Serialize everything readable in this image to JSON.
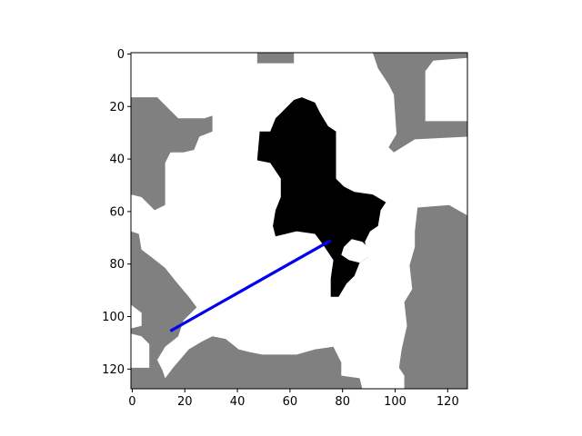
{
  "chart_data": {
    "type": "heatmap",
    "title": "",
    "xlabel": "",
    "ylabel": "",
    "xlim": [
      -0.5,
      127.5
    ],
    "ylim": [
      127.5,
      -0.5
    ],
    "y_axis_inverted": true,
    "grid": false,
    "legend": "none",
    "x_ticks": [
      0,
      20,
      40,
      60,
      80,
      100,
      120
    ],
    "y_ticks": [
      0,
      20,
      40,
      60,
      80,
      100,
      120
    ],
    "x_tick_labels": [
      "0",
      "20",
      "40",
      "60",
      "80",
      "100",
      "120"
    ],
    "y_tick_labels": [
      "0",
      "20",
      "40",
      "60",
      "80",
      "100",
      "120"
    ],
    "colors": {
      "free": "#ffffff",
      "occupied": "#808080",
      "target": "#000000",
      "path": "#0000ee"
    },
    "map_regions": [
      {
        "class": "occupied",
        "name": "top-small-block",
        "polygon": [
          [
            48,
            0
          ],
          [
            62,
            0
          ],
          [
            62,
            4
          ],
          [
            48,
            4
          ]
        ]
      },
      {
        "class": "occupied",
        "name": "top-right-block",
        "polygon": [
          [
            92,
            0
          ],
          [
            128,
            0
          ],
          [
            128,
            2
          ],
          [
            115,
            3
          ],
          [
            112,
            7
          ],
          [
            112,
            26
          ],
          [
            128,
            26
          ],
          [
            128,
            32
          ],
          [
            108,
            33
          ],
          [
            100,
            38
          ],
          [
            98,
            36
          ],
          [
            101,
            31
          ],
          [
            100,
            16
          ],
          [
            98,
            12
          ],
          [
            94,
            6
          ]
        ]
      },
      {
        "class": "occupied",
        "name": "left-upper-block",
        "polygon": [
          [
            0,
            17
          ],
          [
            10,
            17
          ],
          [
            14,
            21
          ],
          [
            18,
            25
          ],
          [
            28,
            25
          ],
          [
            31,
            24
          ],
          [
            31,
            30
          ],
          [
            26,
            32
          ],
          [
            24,
            37
          ],
          [
            20,
            38
          ],
          [
            15,
            38
          ],
          [
            13,
            42
          ],
          [
            13,
            58
          ],
          [
            9,
            60
          ],
          [
            4,
            55
          ],
          [
            0,
            54
          ]
        ]
      },
      {
        "class": "occupied",
        "name": "left-lower-block",
        "polygon": [
          [
            0,
            68
          ],
          [
            3,
            69
          ],
          [
            4,
            75
          ],
          [
            8,
            78
          ],
          [
            13,
            82
          ],
          [
            17,
            87
          ],
          [
            22,
            93
          ],
          [
            25,
            97
          ],
          [
            20,
            102
          ],
          [
            18,
            108
          ],
          [
            13,
            112
          ],
          [
            10,
            117
          ],
          [
            12,
            121
          ],
          [
            13,
            124
          ],
          [
            16,
            120
          ],
          [
            22,
            113
          ],
          [
            27,
            110
          ],
          [
            31,
            108
          ],
          [
            36,
            109
          ],
          [
            41,
            113
          ],
          [
            45,
            114
          ],
          [
            50,
            115
          ],
          [
            63,
            115
          ],
          [
            70,
            113
          ],
          [
            77,
            112
          ],
          [
            80,
            118
          ],
          [
            80,
            123
          ],
          [
            87,
            124
          ],
          [
            88,
            128
          ],
          [
            0,
            128
          ],
          [
            0,
            120
          ],
          [
            7,
            120
          ],
          [
            7,
            111
          ],
          [
            4,
            108
          ],
          [
            0,
            107
          ],
          [
            0,
            105
          ],
          [
            4,
            104
          ],
          [
            4,
            99
          ],
          [
            0,
            96
          ]
        ]
      },
      {
        "class": "occupied",
        "name": "right-block",
        "polygon": [
          [
            109,
            59
          ],
          [
            121,
            58
          ],
          [
            128,
            62
          ],
          [
            128,
            128
          ],
          [
            104,
            128
          ],
          [
            104,
            123
          ],
          [
            102,
            120
          ],
          [
            103,
            113
          ],
          [
            105,
            104
          ],
          [
            104,
            95
          ],
          [
            107,
            90
          ],
          [
            106,
            81
          ],
          [
            108,
            74
          ],
          [
            108,
            68
          ]
        ]
      },
      {
        "class": "free",
        "name": "free-pocket-upper-right",
        "polygon": [
          [
            112,
            7
          ],
          [
            128,
            2
          ],
          [
            128,
            26
          ],
          [
            112,
            26
          ]
        ]
      },
      {
        "class": "free",
        "name": "free-pocket-left",
        "polygon": [
          [
            0,
            99
          ],
          [
            4,
            99
          ],
          [
            4,
            104
          ],
          [
            0,
            105
          ]
        ]
      },
      {
        "class": "target",
        "name": "obstacle",
        "polygon": [
          [
            49,
            30
          ],
          [
            53,
            30
          ],
          [
            55,
            25
          ],
          [
            58,
            22
          ],
          [
            62,
            18
          ],
          [
            65,
            17
          ],
          [
            70,
            19
          ],
          [
            72,
            23
          ],
          [
            75,
            28
          ],
          [
            78,
            30
          ],
          [
            78,
            48
          ],
          [
            81,
            51
          ],
          [
            85,
            53
          ],
          [
            92,
            54
          ],
          [
            97,
            57
          ],
          [
            95,
            60
          ],
          [
            94,
            66
          ],
          [
            91,
            68
          ],
          [
            89,
            72
          ],
          [
            90,
            78
          ],
          [
            87,
            80
          ],
          [
            85,
            85
          ],
          [
            82,
            88
          ],
          [
            79,
            93
          ],
          [
            76,
            93
          ],
          [
            76,
            86
          ],
          [
            77,
            79
          ],
          [
            73,
            73
          ],
          [
            70,
            69
          ],
          [
            63,
            68
          ],
          [
            55,
            70
          ],
          [
            54,
            66
          ],
          [
            55,
            60
          ],
          [
            57,
            55
          ],
          [
            57,
            48
          ],
          [
            53,
            42
          ],
          [
            48,
            41
          ]
        ]
      },
      {
        "class": "free",
        "name": "free-hole-obstacle",
        "polygon": [
          [
            81,
            74
          ],
          [
            84,
            71
          ],
          [
            88,
            72
          ],
          [
            90,
            74
          ],
          [
            90,
            78
          ],
          [
            87,
            80
          ],
          [
            83,
            79
          ],
          [
            80,
            77
          ]
        ]
      }
    ],
    "path": {
      "x": [
        14.5,
        75.5
      ],
      "y": [
        105.5,
        71
      ]
    }
  }
}
